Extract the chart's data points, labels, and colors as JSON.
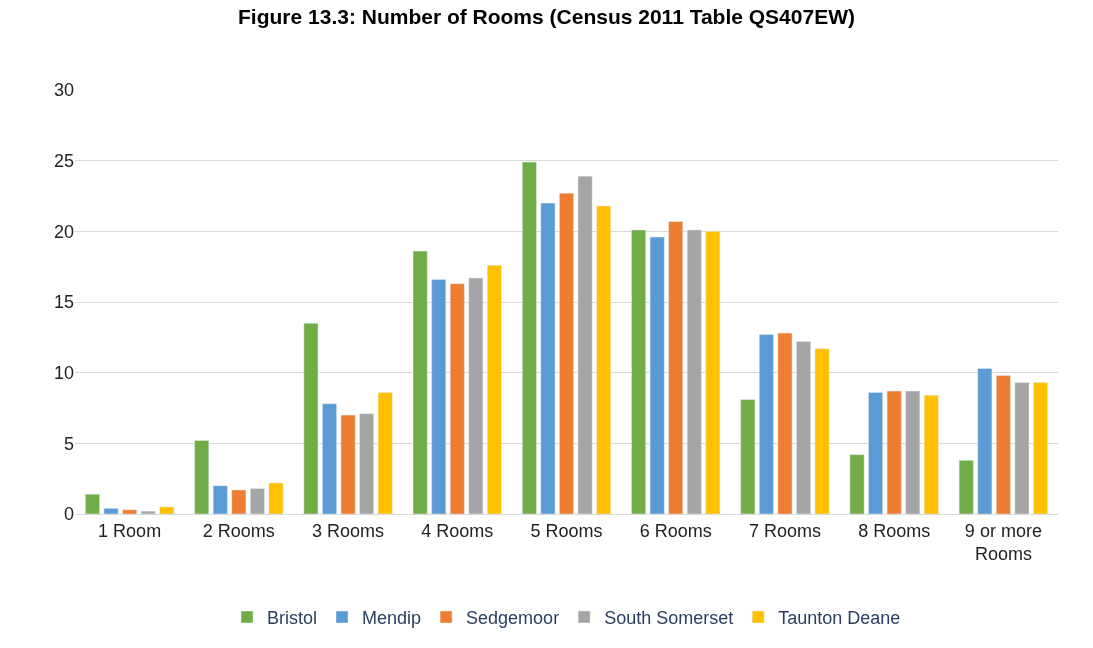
{
  "chart_data": {
    "type": "bar",
    "title": "Figure 13.3: Number of Rooms (Census 2011 Table QS407EW)",
    "categories": [
      "1 Room",
      "2 Rooms",
      "3 Rooms",
      "4 Rooms",
      "5 Rooms",
      "6 Rooms",
      "7 Rooms",
      "8 Rooms",
      "9 or more Rooms"
    ],
    "series": [
      {
        "name": "Bristol",
        "color": "#70ad47",
        "values": [
          1.4,
          5.2,
          13.5,
          18.6,
          24.9,
          20.1,
          8.1,
          4.2,
          3.8
        ]
      },
      {
        "name": "Mendip",
        "color": "#5b9bd5",
        "values": [
          0.4,
          2.0,
          7.8,
          16.6,
          22.0,
          19.6,
          12.7,
          8.6,
          10.3
        ]
      },
      {
        "name": "Sedgemoor",
        "color": "#ed7d31",
        "values": [
          0.3,
          1.7,
          7.0,
          16.3,
          22.7,
          20.7,
          12.8,
          8.7,
          9.8
        ]
      },
      {
        "name": "South Somerset",
        "color": "#a5a5a5",
        "values": [
          0.2,
          1.8,
          7.1,
          16.7,
          23.9,
          20.1,
          12.2,
          8.7,
          9.3
        ]
      },
      {
        "name": "Taunton Deane",
        "color": "#ffc000",
        "values": [
          0.5,
          2.2,
          8.6,
          17.6,
          21.8,
          20.0,
          11.7,
          8.4,
          9.3
        ]
      }
    ],
    "ylim": [
      0,
      30
    ],
    "yticks": [
      0,
      5,
      10,
      15,
      20,
      25,
      30
    ],
    "grid": "y",
    "legend": "bottom"
  }
}
